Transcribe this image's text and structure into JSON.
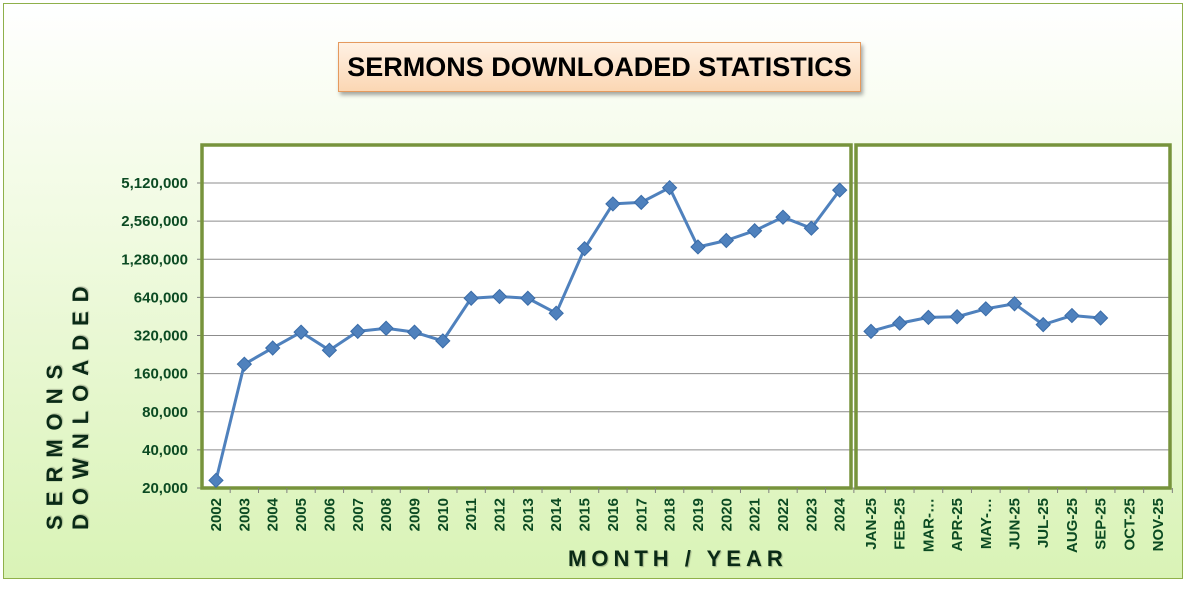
{
  "chart_data": {
    "type": "line",
    "title": "SERMONS DOWNLOADED STATISTICS",
    "xlabel": "MONTH / YEAR",
    "ylabel": "SERMONS DOWNLOADED",
    "yscale": "log2",
    "ylim": [
      20000,
      10240000
    ],
    "yticks": [
      "20,000",
      "40,000",
      "80,000",
      "160,000",
      "320,000",
      "640,000",
      "1,280,000",
      "2,560,000",
      "5,120,000"
    ],
    "ytick_values": [
      20000,
      40000,
      80000,
      160000,
      320000,
      640000,
      1280000,
      2560000,
      5120000
    ],
    "grid": true,
    "legend": "none",
    "colors": {
      "line": "#4f81bd",
      "marker": "#4f81bd",
      "frame": "#77933c",
      "tick_text": "#0b4a22"
    },
    "panels": [
      {
        "name": "years",
        "categories": [
          "2002",
          "2003",
          "2004",
          "2005",
          "2006",
          "2007",
          "2008",
          "2009",
          "2010",
          "2011",
          "2012",
          "2013",
          "2014",
          "2015",
          "2016",
          "2017",
          "2018",
          "2019",
          "2020",
          "2021",
          "2022",
          "2023",
          "2024"
        ],
        "values": [
          23000,
          190000,
          255000,
          340000,
          245000,
          345000,
          365000,
          340000,
          290000,
          630000,
          650000,
          630000,
          480000,
          1550000,
          3500000,
          3600000,
          4700000,
          1600000,
          1800000,
          2150000,
          2750000,
          2250000,
          4500000
        ]
      },
      {
        "name": "months",
        "categories": [
          "JAN-25",
          "FEB-25",
          "MAR-…",
          "APR-25",
          "MAY-…",
          "JUN-25",
          "JUL-25",
          "AUG-25",
          "SEP-25",
          "OCT-25",
          "NOV-25"
        ],
        "values": [
          345000,
          400000,
          445000,
          450000,
          520000,
          570000,
          390000,
          460000,
          440000,
          null,
          null
        ]
      }
    ]
  }
}
